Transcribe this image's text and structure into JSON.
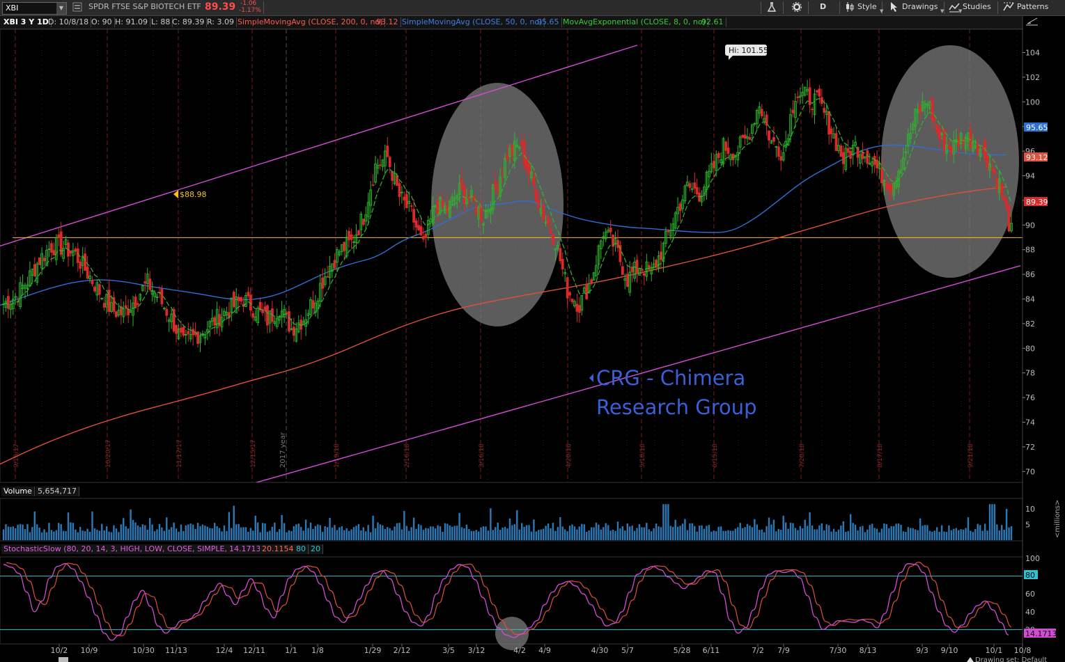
{
  "toolbar": {
    "symbol": "XBI",
    "description": "SPDR FTSE S&P BIOTECH ETF",
    "last": "89.39",
    "change": "-1.06",
    "change_pct": "-1.17%",
    "aggregation": "D",
    "style": "Style",
    "drawings": "Drawings",
    "studies": "Studies",
    "patterns": "Patterns"
  },
  "infobar": {
    "period": "XBI 3 Y 1D",
    "date": "D: 10/8/18",
    "open": "O: 90",
    "high": "H: 91.09",
    "low": "L: 88",
    "close": "C: 89.39",
    "range": "R: 3.09",
    "sma200_label": "SimpleMovingAvg (CLOSE, 200, 0, no)",
    "sma200_value": "93.12",
    "sma50_label": "SimpleMovingAvg (CLOSE, 50, 0, no)",
    "sma50_value": "95.65",
    "ema8_label": "MovAvgExponential (CLOSE, 8, 0, no)",
    "ema8_value": "92.61"
  },
  "volume_pane": {
    "label": "Volume",
    "value": "5,654,717",
    "axis_unit": "<millions>"
  },
  "stoch_pane": {
    "label": "StochasticSlow (80, 20, 14, 3, HIGH, LOW, CLOSE, SIMPLE, No)",
    "k_value": "14.1713",
    "d_value": "20.1154",
    "over_bought": "80",
    "over_sold": "20"
  },
  "annotations": {
    "hi_label": "Hi: 101.55",
    "support_label": "$88.98",
    "watermark_line1": "CRG - Chimera",
    "watermark_line2": "Research Group",
    "year_marker": "2017 year",
    "footer_text": "Drawing set: Default"
  },
  "colors": {
    "background": "#000000",
    "up_candle": "#2db82d",
    "down_candle": "#d92b2b",
    "sma200": "#e0503c",
    "sma50": "#2e6fd6",
    "ema8": "#2db82d",
    "channel": "#d44cd4",
    "support": "#f2c417",
    "volume": "#2a7ab8",
    "stoch_k": "#d44cd4",
    "stoch_d": "#e0503c",
    "stoch_levels": "#2ac4d4",
    "watermark": "#3a5fd8"
  },
  "chart_data": [
    {
      "type": "candlestick",
      "title": "XBI 3 Y 1D",
      "ylim": [
        69,
        105
      ],
      "yticks": [
        70,
        72,
        74,
        76,
        78,
        80,
        82,
        84,
        86,
        88,
        90,
        92,
        94,
        96,
        98,
        100,
        102,
        104
      ],
      "x_date_labels": [
        "10/2",
        "10/9",
        "10/30",
        "11/13",
        "12/4",
        "12/11",
        "1/1",
        "1/8",
        "1/29",
        "2/12",
        "3/5",
        "3/12",
        "4/2",
        "4/9",
        "4/30",
        "5/7",
        "5/28",
        "6/11",
        "7/2",
        "7/9",
        "7/30",
        "8/13",
        "9/3",
        "9/10",
        "10/1",
        "10/8"
      ],
      "vertical_marker_dates": [
        "9/15/17",
        "10/20/17",
        "11/17/17",
        "12/15/17",
        "1/19/18",
        "2/16/18",
        "3/16/18",
        "4/20/18",
        "5/18/18",
        "6/15/18",
        "7/20/18",
        "8/17/18",
        "9/21/18"
      ],
      "price_tags": {
        "sma50": "95.65",
        "sma200": "93.12",
        "last": "89.39"
      },
      "high": {
        "label": "Hi: 101.55",
        "value": 101.55
      },
      "support_level": 88.98,
      "close_path_by_week": [
        83.6,
        84.2,
        85.5,
        87.2,
        88.3,
        88.2,
        87.6,
        86.1,
        84.6,
        83.1,
        82.8,
        84.0,
        85.3,
        84.0,
        82.4,
        80.3,
        81.0,
        81.7,
        82.6,
        83.3,
        84.0,
        83.1,
        82.3,
        83.3,
        81.6,
        82.4,
        84.2,
        86.4,
        87.9,
        88.6,
        90.7,
        94.8,
        95.5,
        92.3,
        90.9,
        88.2,
        91.7,
        91.2,
        92.8,
        92.0,
        90.6,
        93.0,
        95.7,
        96.5,
        93.7,
        90.8,
        88.8,
        84.7,
        83.5,
        85.6,
        89.5,
        88.2,
        85.6,
        86.7,
        86.1,
        88.2,
        90.9,
        93.1,
        92.6,
        94.3,
        96.4,
        95.9,
        97.1,
        99.9,
        96.7,
        95.9,
        100.7,
        100.4,
        99.9,
        97.7,
        95.3,
        96.4,
        95.7,
        94.3,
        93.2,
        95.6,
        98.8,
        100.2,
        97.0,
        96.2,
        97.3,
        96.8,
        95.4,
        93.3,
        89.4
      ],
      "sma50": [
        83.5,
        84.2,
        84.9,
        85.4,
        85.6,
        85.4,
        85.0,
        84.7,
        84.4,
        84.0,
        83.9,
        84.3,
        85.2,
        86.2,
        86.9,
        87.4,
        88.8,
        89.5,
        90.6,
        91.6,
        91.7,
        92.1,
        91.2,
        90.5,
        90.1,
        89.8,
        89.7,
        89.5,
        89.4,
        89.4,
        90.5,
        92.1,
        93.7,
        94.8,
        95.9,
        96.5,
        96.5,
        96.2,
        95.9,
        95.7,
        95.7
      ],
      "sma200": [
        70.6,
        72.2,
        73.5,
        74.6,
        75.5,
        76.4,
        77.4,
        78.3,
        79.5,
        81.0,
        82.3,
        83.3,
        84.0,
        84.6,
        85.2,
        85.9,
        86.7,
        87.5,
        88.4,
        89.4,
        90.4,
        91.4,
        92.1,
        92.7,
        93.1
      ],
      "channel_upper": [
        [
          0,
          88.3
        ],
        [
          915,
          104.6
        ]
      ],
      "channel_lower": [
        [
          0,
          63.2
        ],
        [
          1465,
          86.7
        ]
      ]
    },
    {
      "type": "bar",
      "title": "Volume",
      "unit": "millions",
      "ylim": [
        0,
        12
      ],
      "yticks": [
        5,
        10
      ],
      "last": 5654717
    },
    {
      "type": "line",
      "title": "StochasticSlow (80, 20, 14, 3, HIGH, LOW, CLOSE, SIMPLE, No)",
      "ylim": [
        0,
        100
      ],
      "yticks": [
        20,
        40,
        60,
        80,
        100
      ],
      "levels": [
        80,
        20
      ],
      "last_k": 14.1713,
      "last_d": 20.1154,
      "k_path": [
        93,
        90,
        83,
        62,
        40,
        52,
        78,
        91,
        94,
        88,
        74,
        56,
        36,
        16,
        8,
        14,
        34,
        53,
        64,
        46,
        24,
        16,
        22,
        30,
        31,
        38,
        52,
        63,
        72,
        58,
        48,
        64,
        77,
        63,
        43,
        33,
        58,
        78,
        88,
        91,
        85,
        71,
        52,
        34,
        28,
        38,
        54,
        70,
        83,
        86,
        77,
        59,
        40,
        28,
        24,
        36,
        60,
        77,
        88,
        93,
        90,
        76,
        56,
        36,
        22,
        14,
        11,
        15,
        22,
        30,
        48,
        62,
        71,
        74,
        69,
        60,
        48,
        34,
        24,
        27,
        40,
        62,
        82,
        88,
        91,
        87,
        79,
        72,
        66,
        72,
        79,
        86,
        84,
        60,
        30,
        16,
        22,
        42,
        66,
        82,
        86,
        84,
        86,
        78,
        58,
        34,
        20,
        25,
        30,
        29,
        28,
        31,
        28,
        22,
        38,
        62,
        84,
        94,
        93,
        84,
        62,
        40,
        24,
        17,
        25,
        38,
        47,
        52,
        42,
        28,
        14
      ]
    }
  ]
}
